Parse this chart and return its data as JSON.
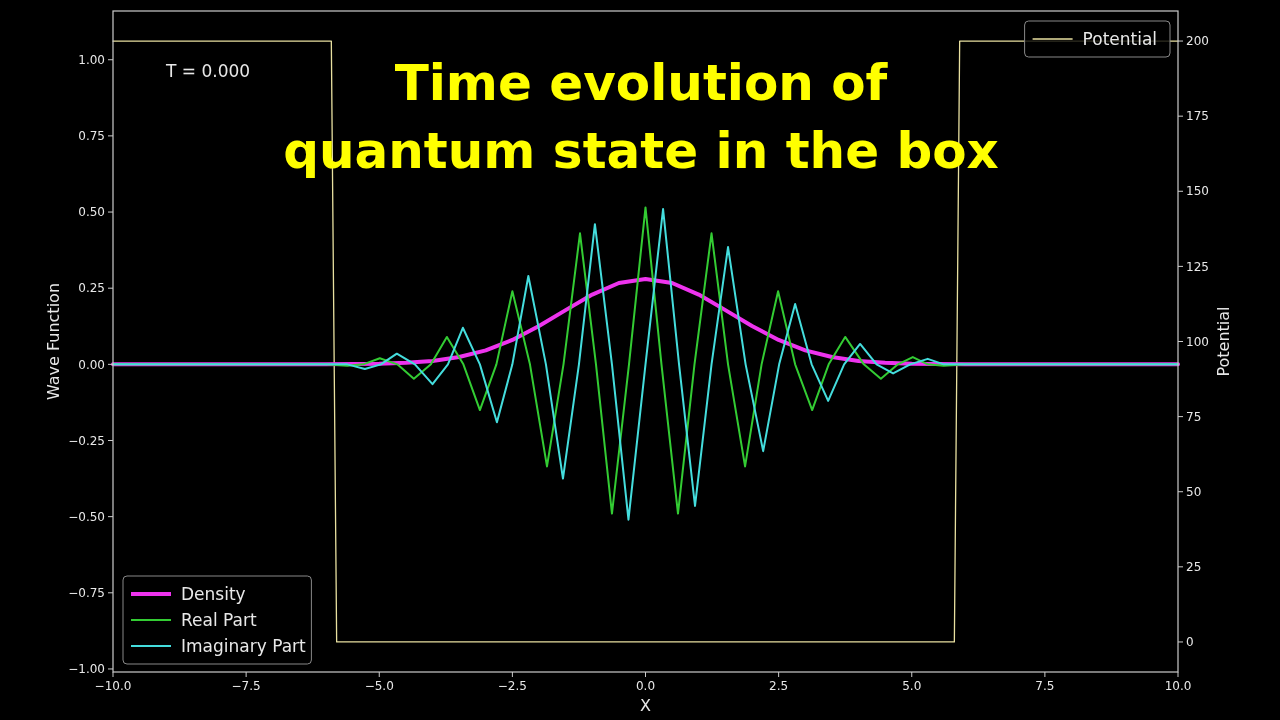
{
  "chart_data": {
    "type": "line",
    "title": "Time evolution of\nquantum state in the box",
    "xlabel": "X",
    "ylabel": "Wave Function",
    "y2label": "Potential",
    "annotations": [
      "T = 0.000"
    ],
    "xlim": [
      -10,
      10
    ],
    "xticks": [
      {
        "value": -10,
        "label": "−10.0"
      },
      {
        "value": -7.5,
        "label": "−7.5"
      },
      {
        "value": -5,
        "label": "−5.0"
      },
      {
        "value": -2.5,
        "label": "−2.5"
      },
      {
        "value": 0,
        "label": "0.0"
      },
      {
        "value": 2.5,
        "label": "2.5"
      },
      {
        "value": 5,
        "label": "5.0"
      },
      {
        "value": 7.5,
        "label": "7.5"
      },
      {
        "value": 10,
        "label": "10.0"
      }
    ],
    "ylim": [
      -1.01,
      1.16
    ],
    "yticks": [
      {
        "value": -1,
        "label": "−1.00"
      },
      {
        "value": -0.75,
        "label": "−0.75"
      },
      {
        "value": -0.5,
        "label": "−0.50"
      },
      {
        "value": -0.25,
        "label": "−0.25"
      },
      {
        "value": 0,
        "label": "0.00"
      },
      {
        "value": 0.25,
        "label": "0.25"
      },
      {
        "value": 0.5,
        "label": "0.50"
      },
      {
        "value": 0.75,
        "label": "0.75"
      },
      {
        "value": 1,
        "label": "1.00"
      }
    ],
    "y2lim": [
      -10,
      210
    ],
    "y2ticks": [
      0,
      25,
      50,
      75,
      100,
      125,
      150,
      175,
      200
    ],
    "legend": "bottom left",
    "grid": false,
    "marker": "none",
    "line_style": "solid",
    "series": [
      {
        "name": "Density",
        "color": "#ee33ee",
        "x": [
          -10,
          -6,
          -5.5,
          -5,
          -4.5,
          -4,
          -3.5,
          -3,
          -2.5,
          -2,
          -1.5,
          -1,
          -0.5,
          0,
          0.5,
          1,
          1.5,
          2,
          2.5,
          3,
          3.5,
          4,
          4.5,
          5,
          5.5,
          6,
          10
        ],
        "values": [
          0,
          0,
          0.001,
          0.002,
          0.005,
          0.011,
          0.024,
          0.046,
          0.08,
          0.126,
          0.178,
          0.229,
          0.267,
          0.28,
          0.267,
          0.229,
          0.178,
          0.126,
          0.08,
          0.046,
          0.024,
          0.011,
          0.005,
          0.002,
          0.001,
          0,
          0
        ]
      },
      {
        "name": "Real Part",
        "color": "#33cc33",
        "x": [
          -10,
          -6,
          -5.6,
          -5.3,
          -4.99,
          -4.66,
          -4.35,
          -4.03,
          -3.73,
          -3.42,
          -3.11,
          -2.8,
          -2.5,
          -2.17,
          -1.85,
          -1.54,
          -1.23,
          -0.93,
          -0.63,
          -0.31,
          0,
          0.3,
          0.61,
          0.92,
          1.24,
          1.55,
          1.87,
          2.18,
          2.49,
          2.81,
          3.13,
          3.44,
          3.75,
          4.1,
          4.42,
          4.74,
          5.02,
          5.3,
          5.6,
          6,
          10
        ],
        "values": [
          0,
          0,
          -0.005,
          0,
          0.02,
          0,
          -0.047,
          0,
          0.09,
          0,
          -0.15,
          0,
          0.24,
          0,
          -0.335,
          0,
          0.43,
          0,
          -0.49,
          0,
          0.515,
          0,
          -0.49,
          0,
          0.43,
          0,
          -0.335,
          0,
          0.24,
          0,
          -0.15,
          0,
          0.09,
          0,
          -0.047,
          0,
          0.024,
          0,
          -0.005,
          0,
          0
        ]
      },
      {
        "name": "Imaginary Part",
        "color": "#44dddd",
        "x": [
          -10,
          -6,
          -5.6,
          -5.27,
          -4.97,
          -4.67,
          -4.33,
          -4.0,
          -3.71,
          -3.43,
          -3.11,
          -2.79,
          -2.5,
          -2.2,
          -1.87,
          -1.55,
          -1.25,
          -0.95,
          -0.63,
          -0.32,
          0,
          0.33,
          0.63,
          0.93,
          1.24,
          1.55,
          1.88,
          2.21,
          2.51,
          2.81,
          3.12,
          3.43,
          3.73,
          4.03,
          4.34,
          4.65,
          4.97,
          5.3,
          5.6,
          6,
          10
        ],
        "values": [
          0,
          0,
          0,
          -0.015,
          0,
          0.035,
          0,
          -0.065,
          0,
          0.12,
          0,
          -0.19,
          0,
          0.29,
          0,
          -0.375,
          0,
          0.46,
          0,
          -0.51,
          0,
          0.51,
          0,
          -0.465,
          0,
          0.385,
          0,
          -0.285,
          0,
          0.198,
          0,
          -0.12,
          0,
          0.067,
          0,
          -0.03,
          0,
          0.018,
          0,
          0,
          0
        ]
      },
      {
        "name": "Potential",
        "color": "#e8e0a0",
        "axis": "y2",
        "x": [
          -10,
          -5.9,
          -5.8,
          5.8,
          5.9,
          10
        ],
        "values": [
          200,
          200,
          0,
          0,
          200,
          200
        ]
      }
    ]
  }
}
